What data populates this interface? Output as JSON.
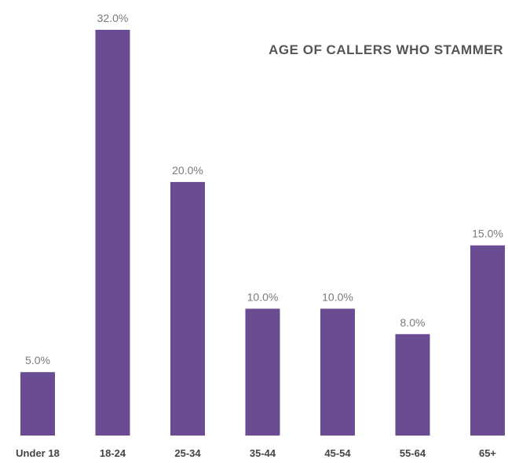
{
  "chart_data": {
    "type": "bar",
    "title": "AGE OF CALLERS WHO STAMMER",
    "categories": [
      "Under 18",
      "18-24",
      "25-34",
      "35-44",
      "45-54",
      "55-64",
      "65+"
    ],
    "values": [
      5.0,
      32.0,
      20.0,
      10.0,
      10.0,
      8.0,
      15.0
    ],
    "value_labels": [
      "5.0%",
      "32.0%",
      "20.0%",
      "10.0%",
      "10.0%",
      "8.0%",
      "15.0%"
    ],
    "xlabel": "",
    "ylabel": "",
    "ylim": [
      0,
      32
    ],
    "grid": false,
    "bar_color": "#6a4c93"
  }
}
